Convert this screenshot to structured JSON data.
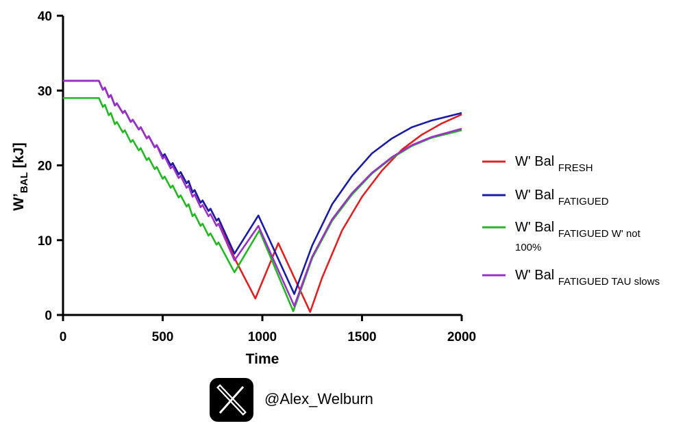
{
  "chart_data": {
    "type": "line",
    "xlabel": "Time",
    "ylabel_main": "W’",
    "ylabel_sub": "BAL",
    "ylabel_unit": " [kJ]",
    "xlim": [
      0,
      2000
    ],
    "ylim": [
      0,
      40
    ],
    "xticks": [
      0,
      500,
      1000,
      1500,
      2000
    ],
    "yticks": [
      0,
      10,
      20,
      30,
      40
    ],
    "grid": false,
    "legend_position": "right",
    "series": [
      {
        "key": "fresh",
        "legend_main": "W' Bal ",
        "legend_sub": "FRESH",
        "color": "#e02020",
        "points": [
          [
            0,
            31.3
          ],
          [
            180,
            31.3
          ],
          [
            200,
            30.1
          ],
          [
            210,
            30.4
          ],
          [
            230,
            29.1
          ],
          [
            240,
            29.4
          ],
          [
            260,
            28.0
          ],
          [
            270,
            28.3
          ],
          [
            300,
            27.0
          ],
          [
            310,
            27.3
          ],
          [
            340,
            25.8
          ],
          [
            350,
            26.1
          ],
          [
            380,
            24.8
          ],
          [
            390,
            25.1
          ],
          [
            420,
            23.6
          ],
          [
            430,
            23.9
          ],
          [
            460,
            22.4
          ],
          [
            470,
            22.7
          ],
          [
            500,
            21.2
          ],
          [
            510,
            21.5
          ],
          [
            540,
            20.0
          ],
          [
            550,
            20.3
          ],
          [
            580,
            18.8
          ],
          [
            590,
            19.1
          ],
          [
            620,
            17.6
          ],
          [
            630,
            17.9
          ],
          [
            650,
            16.4
          ],
          [
            660,
            16.7
          ],
          [
            690,
            15.0
          ],
          [
            700,
            15.3
          ],
          [
            730,
            13.9
          ],
          [
            740,
            14.2
          ],
          [
            770,
            12.6
          ],
          [
            780,
            12.9
          ],
          [
            860,
            7.6
          ],
          [
            965,
            2.2
          ],
          [
            1080,
            9.6
          ],
          [
            1240,
            0.4
          ],
          [
            1300,
            5.0
          ],
          [
            1400,
            11.3
          ],
          [
            1500,
            15.8
          ],
          [
            1600,
            19.3
          ],
          [
            1700,
            22.1
          ],
          [
            1800,
            24.1
          ],
          [
            1900,
            25.6
          ],
          [
            2000,
            26.8
          ]
        ]
      },
      {
        "key": "fatigued",
        "legend_main": "W' Bal ",
        "legend_sub": "FATIGUED",
        "color": "#1a1aa8",
        "points": [
          [
            0,
            31.3
          ],
          [
            180,
            31.3
          ],
          [
            200,
            30.1
          ],
          [
            210,
            30.4
          ],
          [
            230,
            29.1
          ],
          [
            240,
            29.4
          ],
          [
            260,
            28.0
          ],
          [
            270,
            28.3
          ],
          [
            300,
            27.0
          ],
          [
            310,
            27.3
          ],
          [
            340,
            25.8
          ],
          [
            350,
            26.1
          ],
          [
            380,
            24.8
          ],
          [
            390,
            25.1
          ],
          [
            420,
            23.6
          ],
          [
            430,
            23.9
          ],
          [
            460,
            22.4
          ],
          [
            470,
            22.7
          ],
          [
            500,
            21.2
          ],
          [
            510,
            21.5
          ],
          [
            540,
            20.0
          ],
          [
            550,
            20.3
          ],
          [
            580,
            18.8
          ],
          [
            590,
            19.1
          ],
          [
            620,
            17.6
          ],
          [
            630,
            17.9
          ],
          [
            650,
            16.4
          ],
          [
            660,
            16.7
          ],
          [
            690,
            15.0
          ],
          [
            700,
            15.3
          ],
          [
            730,
            13.9
          ],
          [
            740,
            14.2
          ],
          [
            770,
            12.6
          ],
          [
            780,
            12.9
          ],
          [
            860,
            8.2
          ],
          [
            980,
            13.3
          ],
          [
            1160,
            2.8
          ],
          [
            1250,
            9.3
          ],
          [
            1350,
            14.8
          ],
          [
            1450,
            18.6
          ],
          [
            1550,
            21.6
          ],
          [
            1650,
            23.6
          ],
          [
            1750,
            25.1
          ],
          [
            1850,
            26.0
          ],
          [
            2000,
            27.0
          ]
        ]
      },
      {
        "key": "fatigued_wnot",
        "legend_main": "W' Bal ",
        "legend_sub": "FATIGUED  W' not",
        "legend_line2": "100%",
        "color": "#22b822",
        "points": [
          [
            0,
            29.0
          ],
          [
            180,
            29.0
          ],
          [
            200,
            27.8
          ],
          [
            210,
            28.1
          ],
          [
            230,
            26.7
          ],
          [
            240,
            27.0
          ],
          [
            260,
            25.5
          ],
          [
            270,
            25.8
          ],
          [
            300,
            24.4
          ],
          [
            310,
            24.7
          ],
          [
            340,
            23.1
          ],
          [
            350,
            23.4
          ],
          [
            380,
            22.0
          ],
          [
            390,
            22.3
          ],
          [
            420,
            20.7
          ],
          [
            430,
            21.0
          ],
          [
            460,
            19.5
          ],
          [
            470,
            19.8
          ],
          [
            500,
            18.2
          ],
          [
            510,
            18.5
          ],
          [
            540,
            17.0
          ],
          [
            550,
            17.3
          ],
          [
            580,
            15.7
          ],
          [
            590,
            16.0
          ],
          [
            620,
            14.5
          ],
          [
            630,
            14.8
          ],
          [
            650,
            13.2
          ],
          [
            660,
            13.5
          ],
          [
            690,
            11.9
          ],
          [
            700,
            12.2
          ],
          [
            730,
            10.6
          ],
          [
            740,
            10.9
          ],
          [
            770,
            9.4
          ],
          [
            780,
            9.7
          ],
          [
            860,
            5.7
          ],
          [
            985,
            11.3
          ],
          [
            1155,
            0.5
          ],
          [
            1250,
            7.6
          ],
          [
            1350,
            12.6
          ],
          [
            1450,
            16.1
          ],
          [
            1550,
            18.9
          ],
          [
            1650,
            21.0
          ],
          [
            1750,
            22.6
          ],
          [
            1850,
            23.7
          ],
          [
            2000,
            24.7
          ]
        ]
      },
      {
        "key": "fatigued_tau",
        "legend_main": "W' Bal ",
        "legend_sub": "FATIGUED  TAU slows",
        "color": "#9b30c8",
        "points": [
          [
            0,
            31.3
          ],
          [
            180,
            31.3
          ],
          [
            200,
            30.1
          ],
          [
            210,
            30.4
          ],
          [
            230,
            29.1
          ],
          [
            240,
            29.4
          ],
          [
            260,
            28.0
          ],
          [
            270,
            28.3
          ],
          [
            300,
            27.0
          ],
          [
            310,
            27.3
          ],
          [
            340,
            25.8
          ],
          [
            350,
            26.1
          ],
          [
            380,
            24.8
          ],
          [
            390,
            25.1
          ],
          [
            420,
            23.6
          ],
          [
            430,
            23.9
          ],
          [
            460,
            22.4
          ],
          [
            470,
            22.7
          ],
          [
            500,
            20.9
          ],
          [
            510,
            21.2
          ],
          [
            540,
            19.6
          ],
          [
            550,
            19.9
          ],
          [
            580,
            18.3
          ],
          [
            590,
            18.6
          ],
          [
            620,
            17.0
          ],
          [
            630,
            17.3
          ],
          [
            650,
            15.8
          ],
          [
            660,
            16.1
          ],
          [
            690,
            14.4
          ],
          [
            700,
            14.7
          ],
          [
            730,
            13.2
          ],
          [
            740,
            13.5
          ],
          [
            770,
            11.9
          ],
          [
            780,
            12.2
          ],
          [
            860,
            7.3
          ],
          [
            980,
            11.9
          ],
          [
            1160,
            1.2
          ],
          [
            1250,
            7.8
          ],
          [
            1350,
            12.8
          ],
          [
            1450,
            16.3
          ],
          [
            1550,
            19.0
          ],
          [
            1650,
            21.1
          ],
          [
            1750,
            22.7
          ],
          [
            1850,
            23.8
          ],
          [
            2000,
            24.9
          ]
        ]
      }
    ]
  },
  "footer": {
    "icon": "x-logo-icon",
    "handle": "@Alex_Welburn"
  }
}
